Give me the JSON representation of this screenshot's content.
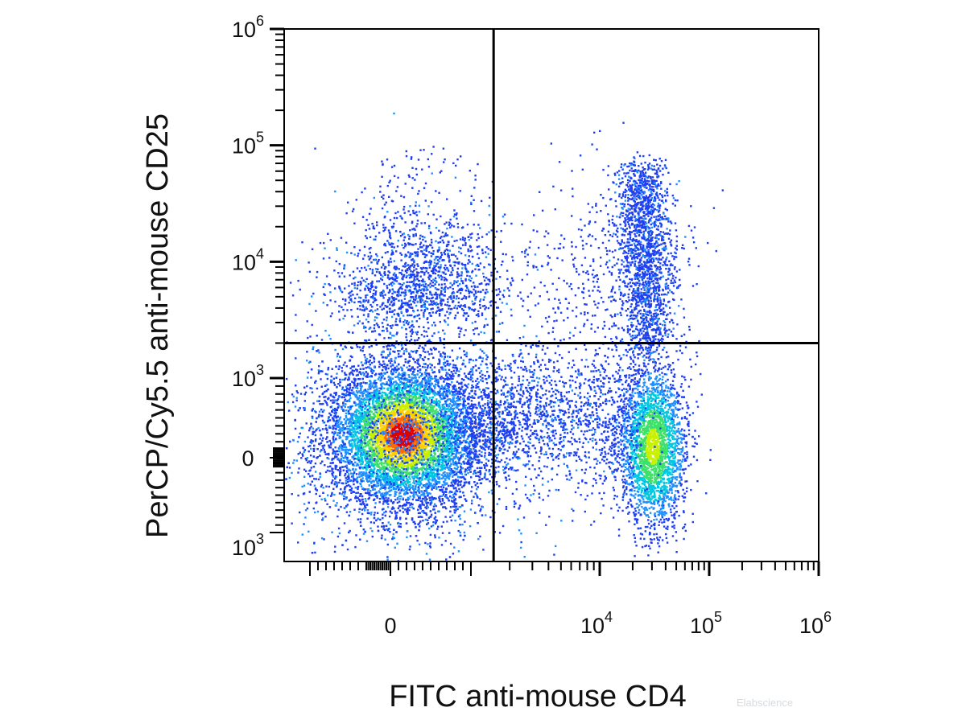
{
  "chart_data": {
    "type": "scatter",
    "subtype": "flow-cytometry-density-plot",
    "xlabel": "FITC anti-mouse CD4",
    "ylabel": "PerCP/Cy5.5 anti-mouse CD25",
    "x_scale": "biexponential",
    "y_scale": "biexponential",
    "x_ticks": [
      {
        "base": "0",
        "exp": "",
        "value": 0
      },
      {
        "base": "10",
        "exp": "4",
        "value": 10000
      },
      {
        "base": "10",
        "exp": "5",
        "value": 100000
      },
      {
        "base": "10",
        "exp": "6",
        "value": 1000000
      }
    ],
    "y_ticks": [
      {
        "base": "10",
        "exp": "6",
        "value": 1000000
      },
      {
        "base": "10",
        "exp": "5",
        "value": 100000
      },
      {
        "base": "10",
        "exp": "4",
        "value": 10000
      },
      {
        "base": "10",
        "exp": "3",
        "value": 1000
      },
      {
        "base": "0",
        "exp": "",
        "value": 0
      },
      {
        "base": "10",
        "exp": "3",
        "value": -1000
      }
    ],
    "quadrant_gate": {
      "x": 1500,
      "y": 2000
    },
    "populations": [
      {
        "name": "",
        "x_center": 150,
        "y_center": 300,
        "relative_density": 1.0
      },
      {
        "name": "",
        "x_center": 30000,
        "y_center": 250,
        "relative_density": 0.35
      },
      {
        "name": "",
        "x_center": 25000,
        "y_center": 12000,
        "relative_density": 0.08
      }
    ],
    "colormap": [
      "#1f3ff0",
      "#1e90ff",
      "#00c8e0",
      "#3ee06a",
      "#c8f000",
      "#ffd000",
      "#ff6a00",
      "#e00000"
    ],
    "grid": false,
    "legend": "none"
  },
  "watermark": "Elabscience"
}
